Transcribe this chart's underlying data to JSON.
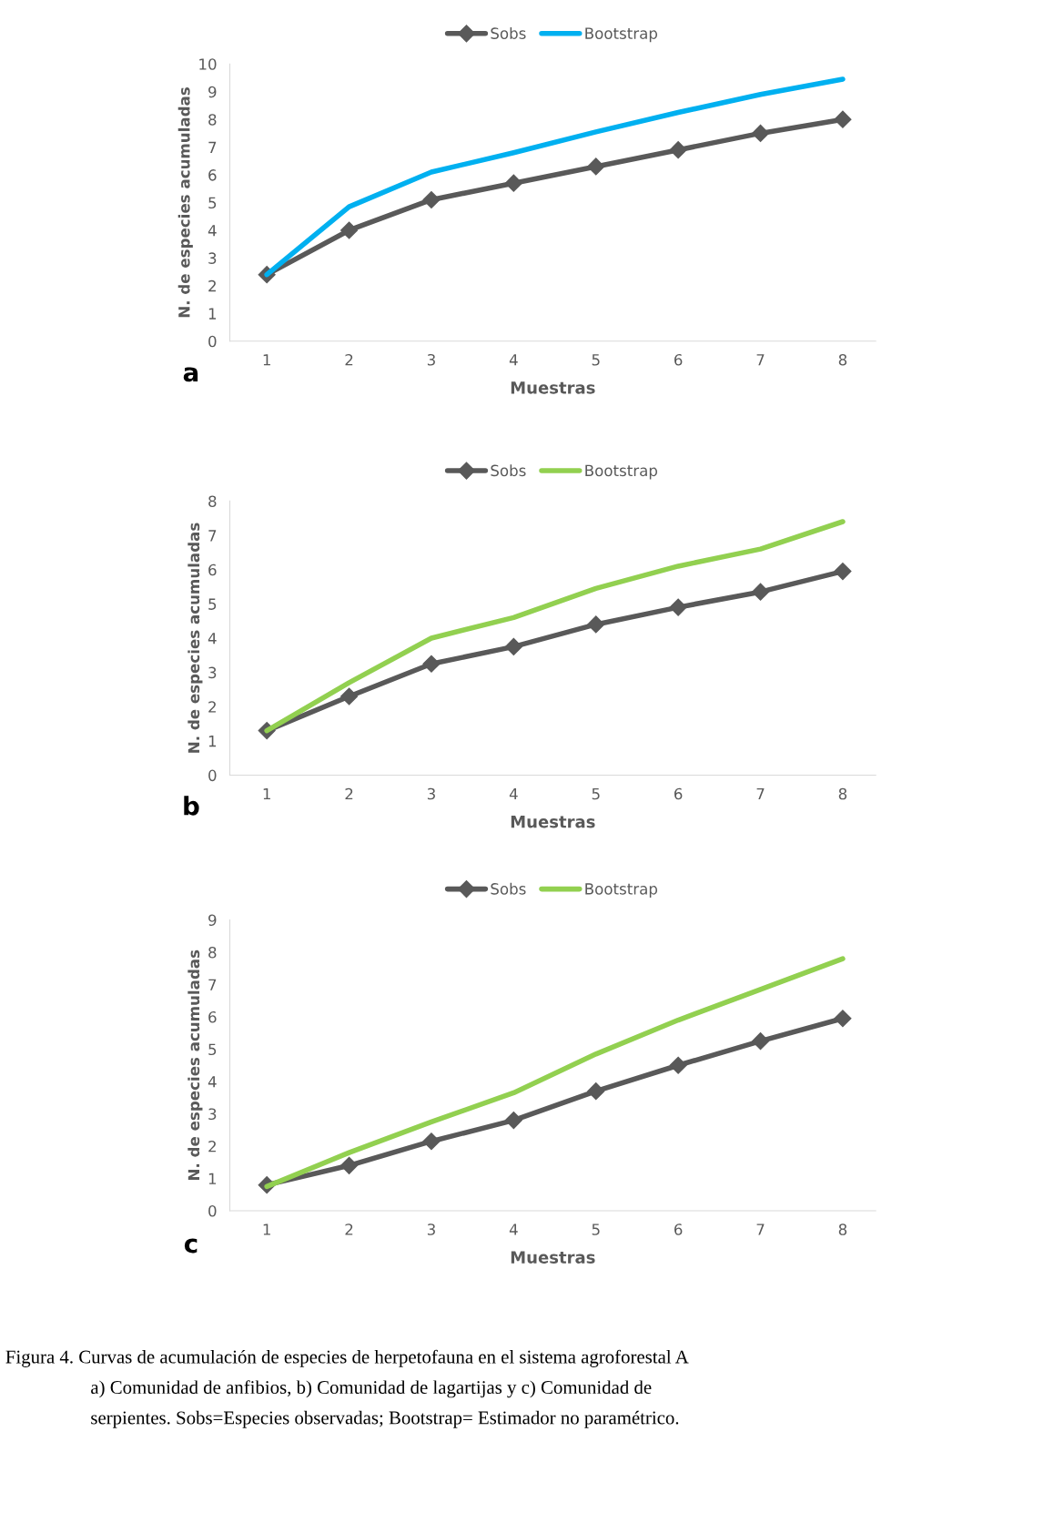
{
  "chart_data": [
    {
      "type": "line",
      "xlabel": "Muestras",
      "ylabel": "N. de especies acumuladas",
      "categories": [
        "1",
        "2",
        "3",
        "4",
        "5",
        "6",
        "7",
        "8"
      ],
      "ylim": [
        0,
        10
      ],
      "yticks": [
        0,
        1,
        2,
        3,
        4,
        5,
        6,
        7,
        8,
        9,
        10
      ],
      "grid": false,
      "legend": "top",
      "annotations": [
        "a"
      ],
      "series": [
        {
          "name": "Sobs",
          "color": "#595959",
          "marker": "diamond",
          "values": [
            2.4,
            4.0,
            5.1,
            5.7,
            6.3,
            6.9,
            7.5,
            8.0
          ]
        },
        {
          "name": "Bootstrap",
          "color": "#00b0f0",
          "marker": "none",
          "values": [
            2.4,
            4.85,
            6.1,
            6.8,
            7.55,
            8.25,
            8.9,
            9.45
          ]
        }
      ]
    },
    {
      "type": "line",
      "xlabel": "Muestras",
      "ylabel": "N. de especies acumuladas",
      "categories": [
        "1",
        "2",
        "3",
        "4",
        "5",
        "6",
        "7",
        "8"
      ],
      "ylim": [
        0,
        8
      ],
      "yticks": [
        0,
        1,
        2,
        3,
        4,
        5,
        6,
        7,
        8
      ],
      "grid": false,
      "legend": "top",
      "annotations": [
        "b"
      ],
      "series": [
        {
          "name": "Sobs",
          "color": "#595959",
          "marker": "diamond",
          "values": [
            1.3,
            2.3,
            3.25,
            3.75,
            4.4,
            4.9,
            5.35,
            5.95
          ]
        },
        {
          "name": "Bootstrap",
          "color": "#92d050",
          "marker": "none",
          "values": [
            1.3,
            2.7,
            4.0,
            4.6,
            5.45,
            6.1,
            6.6,
            7.4
          ]
        }
      ]
    },
    {
      "type": "line",
      "xlabel": "Muestras",
      "ylabel": "N. de especies acumuladas",
      "categories": [
        "1",
        "2",
        "3",
        "4",
        "5",
        "6",
        "7",
        "8"
      ],
      "ylim": [
        0,
        9
      ],
      "yticks": [
        0,
        1,
        2,
        3,
        4,
        5,
        6,
        7,
        8,
        9
      ],
      "grid": false,
      "legend": "top",
      "annotations": [
        "c",
        "Figura 4. Curvas de acumulación de especies de herpetofauna en el sistema agroforestal A",
        "a) Comunidad de anfibios, b) Comunidad de lagartijas y c) Comunidad de",
        "serpientes. Sobs=Especies observadas; Bootstrap= Estimador no paramétrico."
      ],
      "series": [
        {
          "name": "Sobs",
          "color": "#595959",
          "marker": "diamond",
          "values": [
            0.8,
            1.4,
            2.15,
            2.8,
            3.7,
            4.5,
            5.25,
            5.95
          ]
        },
        {
          "name": "Bootstrap",
          "color": "#92d050",
          "marker": "none",
          "values": [
            0.75,
            1.8,
            2.75,
            3.65,
            4.85,
            5.9,
            6.85,
            7.8
          ]
        }
      ]
    }
  ]
}
